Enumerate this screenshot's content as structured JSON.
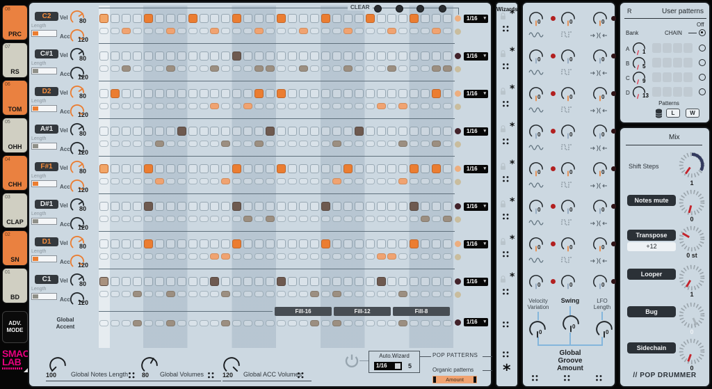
{
  "sidebar": {
    "adv_line1": "ADV.",
    "adv_line2": "MODE",
    "logo_line1": "SMAO",
    "logo_line2": "LAB"
  },
  "header": {
    "clear": "CLEAR"
  },
  "tracks": [
    {
      "num": "08",
      "name": "PRC",
      "note": "C2",
      "color": "orange",
      "vel_label": "Vel",
      "acc_label": "Acc",
      "length_label": "Length",
      "vel": "80",
      "acc": "120",
      "rate": "1/16",
      "vel_steps": [
        1,
        5,
        9,
        13,
        17,
        21,
        25,
        29
      ],
      "acc_steps": [
        3,
        7,
        11,
        15,
        19,
        23,
        27,
        31
      ]
    },
    {
      "num": "07",
      "name": "RS",
      "note": "C#1",
      "color": "gray",
      "vel_label": "Vel",
      "acc_label": "Acc",
      "length_label": "Length",
      "vel": "80",
      "acc": "120",
      "rate": "1/16",
      "vel_steps": [
        13
      ],
      "acc_steps": [
        3,
        7,
        11,
        15,
        16,
        19,
        23,
        27,
        31,
        32
      ]
    },
    {
      "num": "06",
      "name": "TOM",
      "note": "D2",
      "color": "orange",
      "vel_label": "Vel",
      "acc_label": "Acc",
      "length_label": "Length",
      "vel": "80",
      "acc": "120",
      "rate": "1/16",
      "vel_steps": [
        2,
        15,
        17,
        31
      ],
      "acc_steps": [
        11,
        14,
        26,
        28
      ]
    },
    {
      "num": "05",
      "name": "OHH",
      "note": "A#1",
      "color": "gray",
      "vel_label": "Vel",
      "acc_label": "Acc",
      "length_label": "Length",
      "vel": "80",
      "acc": "120",
      "rate": "1/16",
      "vel_steps": [
        8,
        16,
        24
      ],
      "acc_steps": [
        6,
        12,
        15,
        22,
        28,
        31
      ]
    },
    {
      "num": "04",
      "name": "CHH",
      "note": "F#1",
      "color": "orange",
      "vel_label": "Vel",
      "acc_label": "Acc",
      "length_label": "Length",
      "vel": "80",
      "acc": "120",
      "rate": "1/16",
      "vel_steps": [
        1,
        5,
        13,
        17,
        23,
        29,
        31
      ],
      "acc_steps": [
        6,
        12,
        22,
        28
      ]
    },
    {
      "num": "03",
      "name": "CLAP",
      "note": "D#1",
      "color": "gray",
      "vel_label": "Vel",
      "acc_label": "Acc",
      "length_label": "Length",
      "vel": "80",
      "acc": "120",
      "rate": "1/16",
      "vel_steps": [
        5,
        13,
        21,
        29
      ],
      "acc_steps": [
        14,
        16,
        30,
        32
      ]
    },
    {
      "num": "02",
      "name": "SN",
      "note": "D1",
      "color": "orange",
      "vel_label": "Vel",
      "acc_label": "Acc",
      "length_label": "Length",
      "vel": "80",
      "acc": "120",
      "rate": "1/16",
      "vel_steps": [
        5,
        13,
        21,
        29
      ],
      "acc_steps": [
        11,
        12,
        26,
        27
      ]
    },
    {
      "num": "01",
      "name": "BD",
      "note": "C1",
      "color": "gray",
      "vel_label": "Vel",
      "acc_label": "Acc",
      "length_label": "Length",
      "vel": "80",
      "acc": "120",
      "rate": "1/16",
      "vel_steps": [
        1,
        11,
        17,
        26
      ],
      "acc_steps": [
        4,
        7,
        12,
        20,
        22,
        28
      ]
    }
  ],
  "grid": {
    "steps": 32
  },
  "fills": [
    "Fill-16",
    "Fill-12",
    "Fill-8"
  ],
  "global_accent": {
    "label_line1": "Global",
    "label_line2": "Accent",
    "steps": [
      4,
      7,
      12,
      20,
      22,
      28
    ],
    "rate": "1/16"
  },
  "globals": [
    {
      "value": "100",
      "label": "Global Notes Length"
    },
    {
      "value": "80",
      "label": "Global Volumes"
    },
    {
      "value": "120",
      "label": "Global ACC Volumes"
    }
  ],
  "auto_wizard": {
    "title": "Auto.Wizard",
    "rate": "1/16",
    "count": "5",
    "pop": "POP PATTERNS",
    "organic": "Organic patterns",
    "amount": "Amount"
  },
  "wizards": {
    "title": "Wizards"
  },
  "groove": {
    "knob_value": "0",
    "labels": {
      "vel1": "Velocity",
      "vel2": "Variation",
      "swing": "Swing",
      "lfo1": "LFO",
      "lfo2": "Length"
    },
    "global1": "Global",
    "global2": "Groove",
    "global3": "Amount",
    "lower_values": [
      "0",
      "0",
      "0"
    ]
  },
  "user_patterns": {
    "r": "R",
    "title": "User patterns",
    "off": "Off",
    "bank": "Bank",
    "chain": "CHAIN",
    "banks": [
      {
        "letter": "A",
        "value": "1"
      },
      {
        "letter": "B",
        "value": "5"
      },
      {
        "letter": "C",
        "value": "9"
      },
      {
        "letter": "D",
        "value": "13"
      }
    ],
    "patterns": "Patterns",
    "load": "L",
    "write": "W"
  },
  "mix": {
    "title": "Mix",
    "shift_label": "Shift Steps",
    "shift_value": "1",
    "rows": [
      {
        "label": "Notes mute",
        "value": "0"
      },
      {
        "label": "Transpose",
        "value": "0 st",
        "sub": "+12"
      },
      {
        "label": "Looper",
        "value": "1"
      },
      {
        "label": "Bug",
        "value": "0"
      },
      {
        "label": "Sidechain",
        "value": "0"
      }
    ],
    "footer": "// POP DRUMMER"
  },
  "colors": {
    "orange": "#eb7d31",
    "orange_light": "#f0a371",
    "brown": "#6e5a50",
    "brown_light": "#9c8f81",
    "magenta": "#e6007e",
    "red_led": "#b22020",
    "dark_led": "#2e1216",
    "maroon_ind": "#42222a",
    "peach_ind": "#edae7f",
    "beige_ind": "#c9bd9e"
  }
}
